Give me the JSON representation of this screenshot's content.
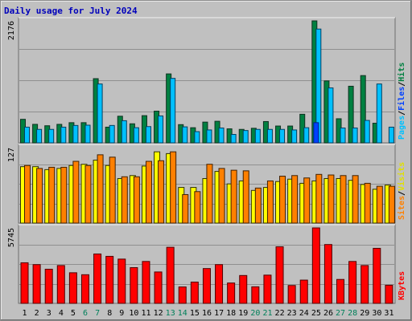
{
  "chart_data": [
    {
      "type": "bar",
      "title": "Daily usage for July 2024",
      "ymax_label": "2176",
      "categories": [
        "1",
        "2",
        "3",
        "4",
        "5",
        "6",
        "7",
        "8",
        "9",
        "10",
        "11",
        "12",
        "13",
        "14",
        "15",
        "16",
        "17",
        "18",
        "19",
        "20",
        "21",
        "22",
        "23",
        "24",
        "25",
        "26",
        "27",
        "28",
        "29",
        "30",
        "31"
      ],
      "weekend_days": [
        6,
        7,
        13,
        14,
        20,
        21,
        27,
        28
      ],
      "ylim": [
        0,
        2176
      ],
      "legend": [
        "Pages",
        "/",
        "Files",
        "/",
        "Hits"
      ],
      "series": [
        {
          "name": "Hits",
          "values": [
            420,
            330,
            305,
            330,
            360,
            360,
            1145,
            280,
            475,
            340,
            485,
            565,
            1230,
            325,
            270,
            370,
            385,
            250,
            240,
            260,
            380,
            300,
            300,
            510,
            2176,
            1105,
            430,
            1010,
            1200,
            350,
            0
          ]
        },
        {
          "name": "Files",
          "values": [
            280,
            240,
            240,
            280,
            310,
            315,
            1050,
            310,
            395,
            270,
            290,
            480,
            1150,
            285,
            200,
            230,
            265,
            150,
            220,
            240,
            240,
            240,
            230,
            270,
            2030,
            980,
            265,
            265,
            400,
            1050,
            280
          ]
        },
        {
          "name": "Pages",
          "values": [
            0,
            0,
            0,
            0,
            0,
            0,
            0,
            0,
            0,
            0,
            0,
            0,
            0,
            0,
            0,
            0,
            0,
            0,
            0,
            0,
            0,
            0,
            0,
            0,
            360,
            0,
            0,
            0,
            0,
            0,
            0
          ]
        }
      ]
    },
    {
      "type": "bar",
      "ymax_label": "127",
      "ylim": [
        0,
        127
      ],
      "legend": [
        "Sites",
        "/",
        "Visits"
      ],
      "series": [
        {
          "name": "Visits",
          "values": [
            95,
            95,
            90,
            92,
            97,
            99,
            106,
            97,
            75,
            80,
            96,
            120,
            117,
            60,
            60,
            75,
            87,
            66,
            71,
            55,
            60,
            70,
            74,
            67,
            71,
            75,
            75,
            72,
            65,
            57,
            64
          ]
        },
        {
          "name": "Sites",
          "values": [
            97,
            92,
            94,
            94,
            104,
            97,
            115,
            111,
            78,
            78,
            104,
            105,
            120,
            48,
            53,
            99,
            92,
            89,
            88,
            59,
            71,
            79,
            80,
            76,
            82,
            81,
            80,
            80,
            67,
            62,
            62
          ]
        }
      ]
    },
    {
      "type": "bar",
      "ymax_label": "5745",
      "ylim": [
        0,
        5745
      ],
      "legend": [
        "KBytes"
      ],
      "series": [
        {
          "name": "KBytes",
          "values": [
            3090,
            2950,
            2600,
            2880,
            2330,
            2180,
            3760,
            3580,
            3370,
            2720,
            3190,
            2390,
            4270,
            1250,
            1620,
            2650,
            2950,
            1550,
            2120,
            1260,
            2150,
            4310,
            1360,
            1770,
            5745,
            4480,
            1820,
            3190,
            2880,
            4190,
            1380
          ]
        }
      ]
    }
  ]
}
